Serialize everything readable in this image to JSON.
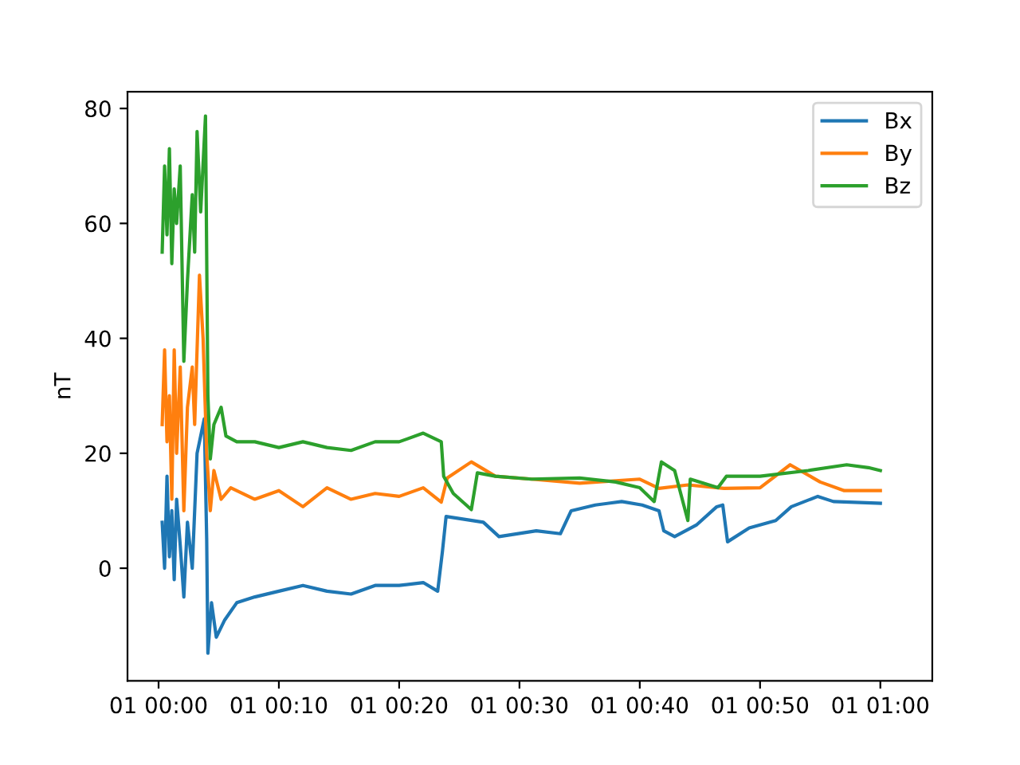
{
  "chart_data": {
    "type": "line",
    "ylabel": "nT",
    "xlim": [
      "1999-12-31T23:57:25",
      "2000-01-01T01:04:19"
    ],
    "ylim": [
      -19.6,
      82.9
    ],
    "xticks": [
      {
        "value": "2000-01-01T00:00",
        "label": "01 00:00"
      },
      {
        "value": "2000-01-01T00:10",
        "label": "01 00:10"
      },
      {
        "value": "2000-01-01T00:20",
        "label": "01 00:20"
      },
      {
        "value": "2000-01-01T00:30",
        "label": "01 00:30"
      },
      {
        "value": "2000-01-01T00:40",
        "label": "01 00:40"
      },
      {
        "value": "2000-01-01T00:50",
        "label": "01 00:50"
      },
      {
        "value": "2000-01-01T01:00",
        "label": "01 01:00"
      }
    ],
    "yticks": [
      0,
      20,
      40,
      60,
      80
    ],
    "grid": false,
    "legend": "top right",
    "marker": "none",
    "line_style": "solid",
    "series": [
      {
        "name": "Bx",
        "color": "#1f77b4",
        "x": [
          "2000-01-01T00:00:18",
          "2000-01-01T00:00:30",
          "2000-01-01T00:00:42",
          "2000-01-01T00:00:54",
          "2000-01-01T00:01:06",
          "2000-01-01T00:01:18",
          "2000-01-01T00:01:30",
          "2000-01-01T00:01:48",
          "2000-01-01T00:02:06",
          "2000-01-01T00:02:24",
          "2000-01-01T00:02:48",
          "2000-01-01T00:03:12",
          "2000-01-01T00:03:48",
          "2000-01-01T00:04:00",
          "2000-01-01T00:04:06",
          "2000-01-01T00:04:24",
          "2000-01-01T00:04:48",
          "2000-01-01T00:05:30",
          "2000-01-01T00:06:30",
          "2000-01-01T00:08:00",
          "2000-01-01T00:10:00",
          "2000-01-01T00:12:00",
          "2000-01-01T00:14:00",
          "2000-01-01T00:16:00",
          "2000-01-01T00:18:00",
          "2000-01-01T00:20:00",
          "2000-01-01T00:22:00",
          "2000-01-01T00:23:12",
          "2000-01-01T00:23:36",
          "2000-01-01T00:23:54",
          "2000-01-01T00:27:00",
          "2000-01-01T00:28:18",
          "2000-01-01T00:31:24",
          "2000-01-01T00:33:24",
          "2000-01-01T00:34:18",
          "2000-01-01T00:36:18",
          "2000-01-01T00:38:30",
          "2000-01-01T00:40:12",
          "2000-01-01T00:41:36",
          "2000-01-01T00:42:00",
          "2000-01-01T00:42:54",
          "2000-01-01T00:44:42",
          "2000-01-01T00:46:24",
          "2000-01-01T00:46:54",
          "2000-01-01T00:47:18",
          "2000-01-01T00:49:06",
          "2000-01-01T00:51:18",
          "2000-01-01T00:52:36",
          "2000-01-01T00:54:48",
          "2000-01-01T00:56:06",
          "2000-01-01T01:00:00"
        ],
        "values": [
          8,
          0,
          16,
          2,
          10,
          -2,
          12,
          4,
          -5,
          8,
          0,
          20,
          26,
          5,
          -14.8,
          -6,
          -12,
          -9,
          -6,
          -5,
          -4,
          -3,
          -4,
          -4.5,
          -3,
          -3,
          -2.5,
          -4,
          3,
          9,
          8,
          5.5,
          6.5,
          6,
          10,
          11,
          11.6,
          11,
          10,
          6.5,
          5.5,
          7.5,
          10.7,
          11,
          4.6,
          7,
          8.3,
          10.7,
          12.5,
          11.6,
          11.3
        ]
      },
      {
        "name": "By",
        "color": "#ff7f0e",
        "x": [
          "2000-01-01T00:00:18",
          "2000-01-01T00:00:30",
          "2000-01-01T00:00:42",
          "2000-01-01T00:00:54",
          "2000-01-01T00:01:06",
          "2000-01-01T00:01:18",
          "2000-01-01T00:01:30",
          "2000-01-01T00:01:48",
          "2000-01-01T00:02:06",
          "2000-01-01T00:02:24",
          "2000-01-01T00:02:48",
          "2000-01-01T00:03:00",
          "2000-01-01T00:03:24",
          "2000-01-01T00:03:42",
          "2000-01-01T00:04:00",
          "2000-01-01T00:04:18",
          "2000-01-01T00:04:36",
          "2000-01-01T00:05:12",
          "2000-01-01T00:06:00",
          "2000-01-01T00:08:00",
          "2000-01-01T00:10:00",
          "2000-01-01T00:12:00",
          "2000-01-01T00:14:00",
          "2000-01-01T00:16:00",
          "2000-01-01T00:18:00",
          "2000-01-01T00:20:00",
          "2000-01-01T00:22:00",
          "2000-01-01T00:23:30",
          "2000-01-01T00:24:00",
          "2000-01-01T00:26:00",
          "2000-01-01T00:28:00",
          "2000-01-01T00:31:00",
          "2000-01-01T00:35:00",
          "2000-01-01T00:40:00",
          "2000-01-01T00:41:36",
          "2000-01-01T00:44:00",
          "2000-01-01T00:47:00",
          "2000-01-01T00:50:00",
          "2000-01-01T00:52:30",
          "2000-01-01T00:55:00",
          "2000-01-01T00:57:00",
          "2000-01-01T01:00:00"
        ],
        "values": [
          25,
          38,
          22,
          30,
          12,
          38,
          20,
          35,
          10,
          28,
          35,
          25,
          51,
          40,
          20,
          10,
          17,
          12,
          14,
          12,
          13.5,
          10.7,
          14,
          12,
          13,
          12.5,
          14,
          11.5,
          15.7,
          18.5,
          16,
          15.5,
          14.8,
          15.5,
          13.9,
          14.5,
          13.9,
          14,
          18,
          15,
          13.5,
          13.5
        ]
      },
      {
        "name": "Bz",
        "color": "#2ca02c",
        "x": [
          "2000-01-01T00:00:18",
          "2000-01-01T00:00:30",
          "2000-01-01T00:00:42",
          "2000-01-01T00:00:54",
          "2000-01-01T00:01:06",
          "2000-01-01T00:01:18",
          "2000-01-01T00:01:30",
          "2000-01-01T00:01:48",
          "2000-01-01T00:02:06",
          "2000-01-01T00:02:24",
          "2000-01-01T00:02:48",
          "2000-01-01T00:03:00",
          "2000-01-01T00:03:12",
          "2000-01-01T00:03:30",
          "2000-01-01T00:03:54",
          "2000-01-01T00:04:06",
          "2000-01-01T00:04:18",
          "2000-01-01T00:04:36",
          "2000-01-01T00:05:12",
          "2000-01-01T00:05:36",
          "2000-01-01T00:06:30",
          "2000-01-01T00:08:00",
          "2000-01-01T00:10:00",
          "2000-01-01T00:12:00",
          "2000-01-01T00:14:00",
          "2000-01-01T00:16:00",
          "2000-01-01T00:18:00",
          "2000-01-01T00:20:00",
          "2000-01-01T00:22:00",
          "2000-01-01T00:23:30",
          "2000-01-01T00:23:42",
          "2000-01-01T00:24:30",
          "2000-01-01T00:26:00",
          "2000-01-01T00:26:30",
          "2000-01-01T00:28:00",
          "2000-01-01T00:31:00",
          "2000-01-01T00:35:00",
          "2000-01-01T00:38:00",
          "2000-01-01T00:40:00",
          "2000-01-01T00:41:12",
          "2000-01-01T00:41:48",
          "2000-01-01T00:42:54",
          "2000-01-01T00:44:00",
          "2000-01-01T00:44:12",
          "2000-01-01T00:46:30",
          "2000-01-01T00:47:12",
          "2000-01-01T00:50:00",
          "2000-01-01T00:54:00",
          "2000-01-01T00:57:12",
          "2000-01-01T00:59:00",
          "2000-01-01T01:00:00"
        ],
        "values": [
          55,
          70,
          58,
          73,
          53,
          66,
          60,
          70,
          36,
          50,
          65,
          55,
          76,
          62,
          78.7,
          30,
          19,
          25,
          28,
          23,
          22,
          22,
          21,
          22,
          21,
          20.5,
          22,
          22,
          23.5,
          22,
          16,
          13,
          10.2,
          16.6,
          16,
          15.5,
          15.7,
          15,
          14,
          11.6,
          18.5,
          17,
          8.3,
          15.5,
          14,
          16,
          16,
          17,
          18,
          17.5,
          17
        ]
      }
    ]
  }
}
